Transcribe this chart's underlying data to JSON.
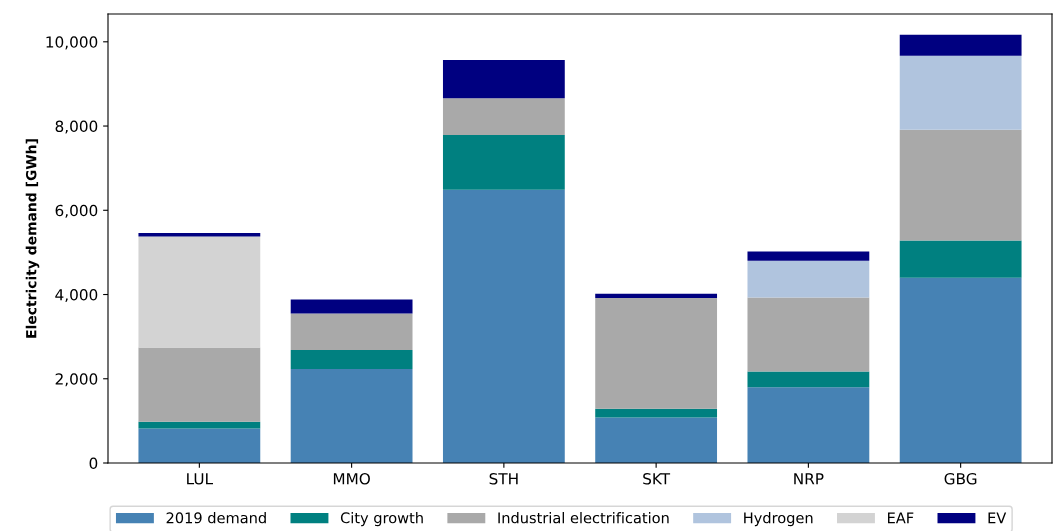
{
  "chart_data": {
    "type": "bar",
    "stacked": true,
    "ylabel": "Electricity demand [GWh]",
    "categories": [
      "LUL",
      "MMO",
      "STH",
      "SKT",
      "NRP",
      "GBG"
    ],
    "series": [
      {
        "name": "2019 demand",
        "color": "#4682b4",
        "values": [
          820,
          2230,
          6490,
          1080,
          1800,
          4400
        ]
      },
      {
        "name": "City growth",
        "color": "#008080",
        "values": [
          160,
          450,
          1300,
          210,
          370,
          880
        ]
      },
      {
        "name": "Industrial electrification",
        "color": "#a9a9a9",
        "values": [
          1760,
          870,
          870,
          2630,
          1760,
          2630
        ]
      },
      {
        "name": "Hydrogen",
        "color": "#b0c4de",
        "values": [
          0,
          0,
          0,
          0,
          870,
          1760
        ]
      },
      {
        "name": "EAF",
        "color": "#d3d3d3",
        "values": [
          2640,
          0,
          0,
          0,
          0,
          0
        ]
      },
      {
        "name": "EV",
        "color": "#000080",
        "values": [
          80,
          330,
          910,
          100,
          220,
          500
        ]
      }
    ],
    "ylim": [
      0,
      10660
    ],
    "yticks": [
      {
        "value": 0,
        "label": "0"
      },
      {
        "value": 2000,
        "label": "2,000"
      },
      {
        "value": 4000,
        "label": "4,000"
      },
      {
        "value": 6000,
        "label": "6,000"
      },
      {
        "value": 8000,
        "label": "8,000"
      },
      {
        "value": 10000,
        "label": "10,000"
      }
    ],
    "legend": "bottom"
  }
}
